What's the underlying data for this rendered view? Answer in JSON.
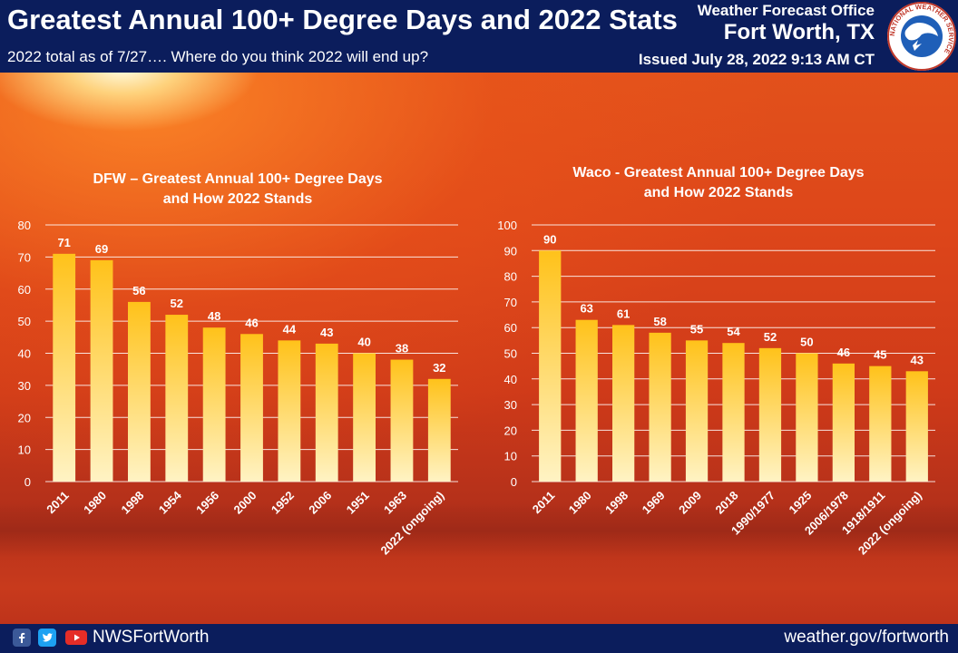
{
  "header": {
    "title": "Greatest Annual 100+ Degree Days and 2022 Stats",
    "subtitle": "2022 total as of 7/27…. Where do you think 2022 will end up?",
    "office_line1": "Weather Forecast Office",
    "office_line2": "Fort Worth, TX",
    "issued": "Issued July 28, 2022 9:13 AM CT",
    "logo_text": "NATIONAL WEATHER SERVICE"
  },
  "footer": {
    "handle": "NWSFortWorth",
    "website": "weather.gov/fortworth",
    "icons": [
      "facebook-icon",
      "twitter-icon",
      "youtube-icon"
    ]
  },
  "colors": {
    "banner": "#0b1d5c",
    "bar_top": "#ffc21a",
    "bar_bottom": "#fff3c4",
    "grid": "#ffffff"
  },
  "chart_data": [
    {
      "type": "bar",
      "title": "DFW – Greatest Annual 100+ Degree Days and How 2022 Stands",
      "title_lines": [
        "DFW – Greatest Annual 100+ Degree Days",
        "and How 2022 Stands"
      ],
      "categories": [
        "2011",
        "1980",
        "1998",
        "1954",
        "1956",
        "2000",
        "1952",
        "2006",
        "1951",
        "1963",
        "2022 (ongoing)"
      ],
      "values": [
        71,
        69,
        56,
        52,
        48,
        46,
        44,
        43,
        40,
        38,
        32
      ],
      "ylim": [
        0,
        80
      ],
      "yticks": [
        0,
        10,
        20,
        30,
        40,
        50,
        60,
        70,
        80
      ],
      "xlabel": "",
      "ylabel": "",
      "grid": true,
      "data_labels": true
    },
    {
      "type": "bar",
      "title": "Waco - Greatest Annual 100+ Degree Days and How 2022 Stands",
      "title_lines": [
        "Waco - Greatest Annual 100+ Degree Days",
        "and How 2022 Stands"
      ],
      "categories": [
        "2011",
        "1980",
        "1998",
        "1969",
        "2009",
        "2018",
        "1990/1977",
        "1925",
        "2006/1978",
        "1918/1911",
        "2022 (ongoing)"
      ],
      "values": [
        90,
        63,
        61,
        58,
        55,
        54,
        52,
        50,
        46,
        45,
        43
      ],
      "ylim": [
        0,
        100
      ],
      "yticks": [
        0,
        10,
        20,
        30,
        40,
        50,
        60,
        70,
        80,
        90,
        100
      ],
      "xlabel": "",
      "ylabel": "",
      "grid": true,
      "data_labels": true
    }
  ]
}
